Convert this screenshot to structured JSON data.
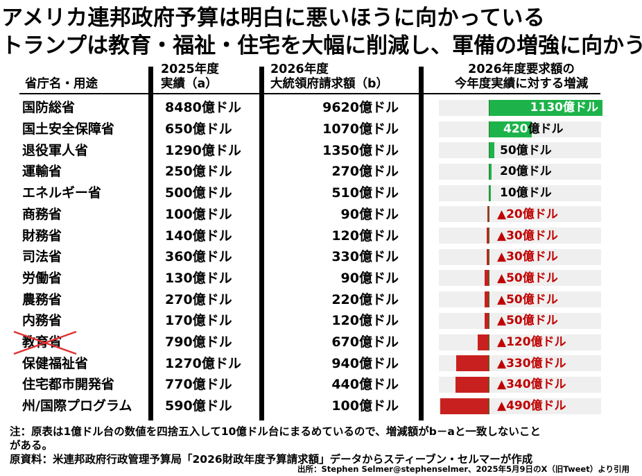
{
  "title_line1": "アメリカ連邦政府予算は明白に悪いほうに向かっている",
  "title_line2": "トランプは教育・福祉・住宅を大幅に削減し、軍備の増強に向かう",
  "headers": {
    "dept": "省庁名・用途",
    "col_a": [
      "2025年度",
      "実績（a）"
    ],
    "col_b": [
      "2026年度",
      "大統領府請求額（b）"
    ],
    "col_c": [
      "2026年度要求額の",
      "今年度実績に対する増減"
    ]
  },
  "colors": {
    "increase": "#1db34a",
    "decrease": "#c8201f",
    "track": "#efefef",
    "decrease_text": "#c00000"
  },
  "chart_data": {
    "type": "table",
    "unit": "億ドル",
    "columns": [
      "省庁名・用途",
      "2025年度実績（a）",
      "2026年度大統領府請求額（b）",
      "増減"
    ],
    "rows": [
      {
        "dept": "国防総省",
        "a": 8480,
        "b": 9620,
        "change": 1130,
        "a_text": "8480億ドル",
        "b_text": "9620億ドル",
        "change_label": "1130億ドル"
      },
      {
        "dept": "国土安全保障省",
        "a": 650,
        "b": 1070,
        "change": 420,
        "a_text": "650億ドル",
        "b_text": "1070億ドル",
        "change_label": "420億ドル"
      },
      {
        "dept": "退役軍人省",
        "a": 1290,
        "b": 1350,
        "change": 50,
        "a_text": "1290億ドル",
        "b_text": "1350億ドル",
        "change_label": "50億ドル"
      },
      {
        "dept": "運輸省",
        "a": 250,
        "b": 270,
        "change": 20,
        "a_text": "250億ドル",
        "b_text": "270億ドル",
        "change_label": "20億ドル"
      },
      {
        "dept": "エネルギー省",
        "a": 500,
        "b": 510,
        "change": 10,
        "a_text": "500億ドル",
        "b_text": "510億ドル",
        "change_label": "10億ドル"
      },
      {
        "dept": "商務省",
        "a": 100,
        "b": 90,
        "change": -20,
        "a_text": "100億ドル",
        "b_text": "90億ドル",
        "change_label": "▲20億ドル"
      },
      {
        "dept": "財務省",
        "a": 140,
        "b": 120,
        "change": -30,
        "a_text": "140億ドル",
        "b_text": "120億ドル",
        "change_label": "▲30億ドル"
      },
      {
        "dept": "司法省",
        "a": 360,
        "b": 330,
        "change": -30,
        "a_text": "360億ドル",
        "b_text": "330億ドル",
        "change_label": "▲30億ドル"
      },
      {
        "dept": "労働省",
        "a": 130,
        "b": 90,
        "change": -50,
        "a_text": "130億ドル",
        "b_text": "90億ドル",
        "change_label": "▲50億ドル"
      },
      {
        "dept": "農務省",
        "a": 270,
        "b": 220,
        "change": -50,
        "a_text": "270億ドル",
        "b_text": "220億ドル",
        "change_label": "▲50億ドル"
      },
      {
        "dept": "内務省",
        "a": 170,
        "b": 120,
        "change": -50,
        "a_text": "170億ドル",
        "b_text": "120億ドル",
        "change_label": "▲50億ドル"
      },
      {
        "dept": "教育省",
        "a": 790,
        "b": 670,
        "change": -120,
        "a_text": "790億ドル",
        "b_text": "670億ドル",
        "change_label": "▲120億ドル",
        "struck": true
      },
      {
        "dept": "保健福祉省",
        "a": 1270,
        "b": 940,
        "change": -330,
        "a_text": "1270億ドル",
        "b_text": "940億ドル",
        "change_label": "▲330億ドル"
      },
      {
        "dept": "住宅都市開発省",
        "a": 770,
        "b": 440,
        "change": -340,
        "a_text": "770億ドル",
        "b_text": "440億ドル",
        "change_label": "▲340億ドル"
      },
      {
        "dept": "州/国際プログラム",
        "a": 590,
        "b": 100,
        "change": -490,
        "a_text": "590億ドル",
        "b_text": "100億ドル",
        "change_label": "▲490億ドル"
      }
    ]
  },
  "notes": {
    "note1": "注：原表は1億ドル台の数値を四捨五入して10億ドル台にまるめているので、増減額がb－aと一致しないこと",
    "note2": "がある。",
    "note3": "原資料：米連邦政府行政管理予算局「2026財政年度予算請求額」データからスティーブン・セルマーが作成",
    "source": "出所：Stephen Selmer@stephenselmer、2025年5月9日のX（旧Tweet）より引用"
  }
}
